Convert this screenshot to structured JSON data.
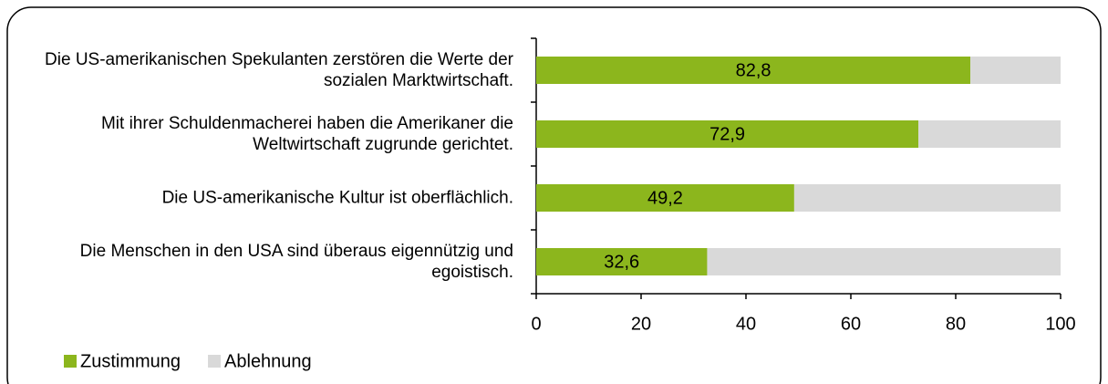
{
  "chart_data": {
    "type": "stacked_barh",
    "categories": [
      "Die US-amerikanischen Spekulanten zerstören die Werte der sozialen Marktwirtschaft.",
      "Mit ihrer Schuldenmacherei haben die Amerikaner die Weltwirtschaft zugrunde gerichtet.",
      "Die US-amerikanische Kultur ist oberflächlich.",
      "Die Menschen in den USA sind überaus eigennützig und egoistisch."
    ],
    "series": [
      {
        "name": "Zustimmung",
        "color": "#8cb61d",
        "values": [
          82.8,
          72.9,
          49.2,
          32.6
        ],
        "value_labels": [
          "82,8",
          "72,9",
          "49,2",
          "32,6"
        ]
      },
      {
        "name": "Ablehnung",
        "color": "#d9d9d9",
        "values": [
          17.2,
          27.1,
          50.8,
          67.4
        ]
      }
    ],
    "xlim": [
      0,
      100
    ],
    "xticks": [
      0,
      20,
      40,
      60,
      80,
      100
    ],
    "legend": "bottom-left"
  }
}
